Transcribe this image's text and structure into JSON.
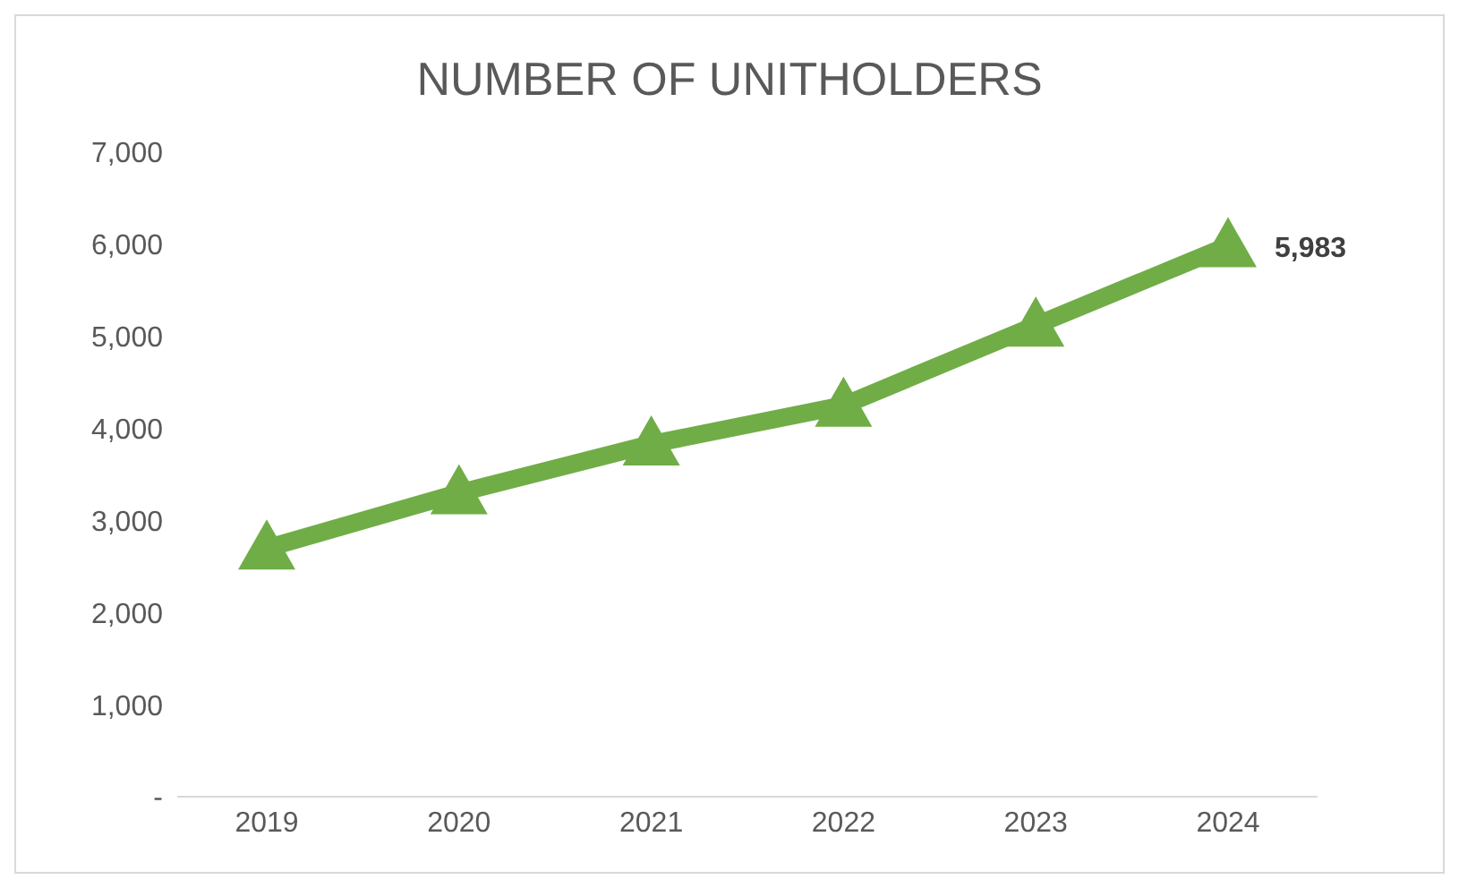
{
  "chart_data": {
    "type": "line",
    "title": "NUMBER OF UNITHOLDERS",
    "categories": [
      "2019",
      "2020",
      "2021",
      "2022",
      "2023",
      "2024"
    ],
    "series": [
      {
        "color": "#70ad47",
        "values": [
          2700,
          3300,
          3830,
          4250,
          5120,
          5983
        ],
        "value_labels": [
          null,
          null,
          null,
          null,
          null,
          "5,983"
        ]
      }
    ],
    "ylim": [
      0,
      7000
    ],
    "yticks": [
      {
        "value": 0,
        "label": "-"
      },
      {
        "value": 1000,
        "label": "1,000"
      },
      {
        "value": 2000,
        "label": "2,000"
      },
      {
        "value": 3000,
        "label": "3,000"
      },
      {
        "value": 4000,
        "label": "4,000"
      },
      {
        "value": 5000,
        "label": "5,000"
      },
      {
        "value": 6000,
        "label": "6,000"
      },
      {
        "value": 7000,
        "label": "7,000"
      }
    ],
    "grid": false,
    "legend": false,
    "marker": "triangle",
    "line_style": "solid"
  }
}
